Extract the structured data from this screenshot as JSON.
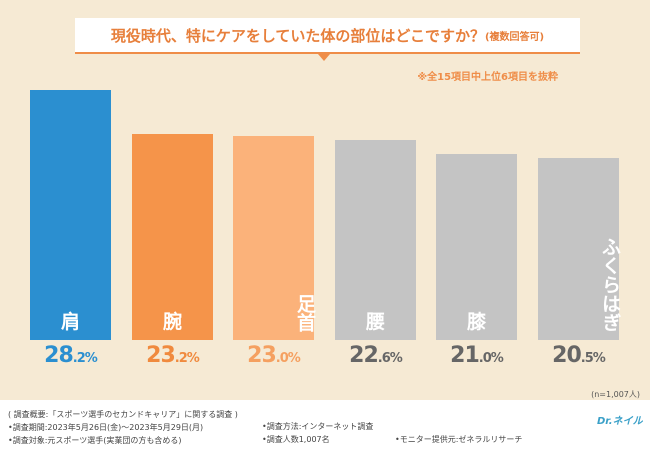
{
  "chart_data": {
    "type": "bar",
    "title": "現役時代、特にケアをしていた体の部位はどこですか？",
    "subtitle": "(複数回答可)",
    "note": "※全15項目中上位6項目を抜粋",
    "categories": [
      "肩",
      "腕",
      "足首",
      "腰",
      "膝",
      "ふくらはぎ"
    ],
    "values": [
      28.2,
      23.2,
      23.0,
      22.6,
      21.0,
      20.5
    ],
    "value_labels": [
      {
        "int": "28",
        "dec": ".2%"
      },
      {
        "int": "23",
        "dec": ".2%"
      },
      {
        "int": "23",
        "dec": ".0%"
      },
      {
        "int": "22",
        "dec": ".6%"
      },
      {
        "int": "21",
        "dec": ".0%"
      },
      {
        "int": "20",
        "dec": ".5%"
      }
    ],
    "colors": [
      "#2b8fd0",
      "#f5944a",
      "#fbb27a",
      "#c4c4c4",
      "#c4c4c4",
      "#c4c4c4"
    ],
    "label_colors": [
      "#2b8fd0",
      "#f08a3e",
      "#f5a060",
      "#666666",
      "#666666",
      "#666666"
    ],
    "ylim": [
      0,
      30
    ],
    "n": "(n=1,007人)"
  },
  "footer": {
    "overview": "( 調査概要:「スポーツ選手のセカンドキャリア」に関する調査 )",
    "period": "•調査期間:2023年5月26日(金)～2023年5月29日(月)",
    "target": "•調査対象:元スポーツ選手(実業団の方も含める)",
    "method": "•調査方法:インターネット調査",
    "count": "•調査人数1,007名",
    "provider": "•モニター提供元:ゼネラルリサーチ",
    "logo": "Dr.ネイル"
  }
}
